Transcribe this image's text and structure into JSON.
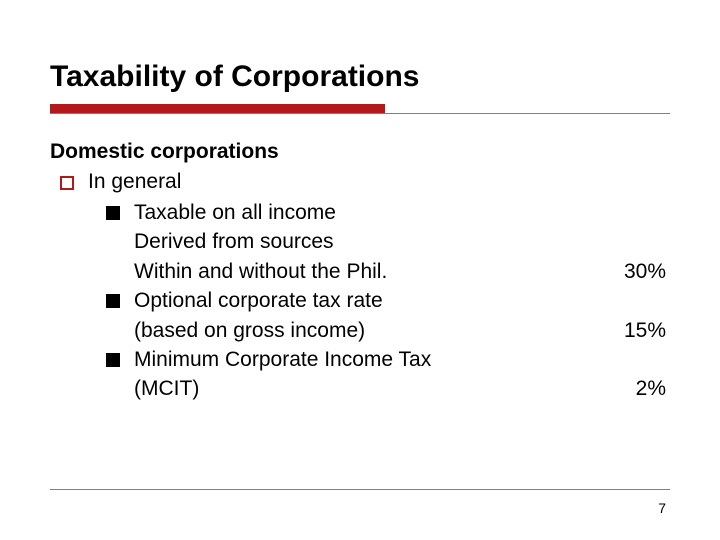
{
  "title": "Taxability of Corporations",
  "subheading": "Domestic corporations",
  "level1_label": "In general",
  "items": [
    {
      "line1": "Taxable on all income",
      "line2": "Derived from sources",
      "line3": "Within and without the Phil.",
      "rate": "30%"
    },
    {
      "line1": " Optional corporate tax rate",
      "line2": "(based on gross income)",
      "rate": "15%"
    },
    {
      "line1": "Minimum Corporate Income Tax",
      "line2": "(MCIT)",
      "rate": "2%"
    }
  ],
  "page_number": "7",
  "colors": {
    "accent": "#b3191b",
    "rule_gray": "#808080",
    "text": "#000000",
    "background": "#ffffff"
  },
  "fonts": {
    "family": "Verdana",
    "title_size_pt": 24,
    "body_size_pt": 17
  }
}
